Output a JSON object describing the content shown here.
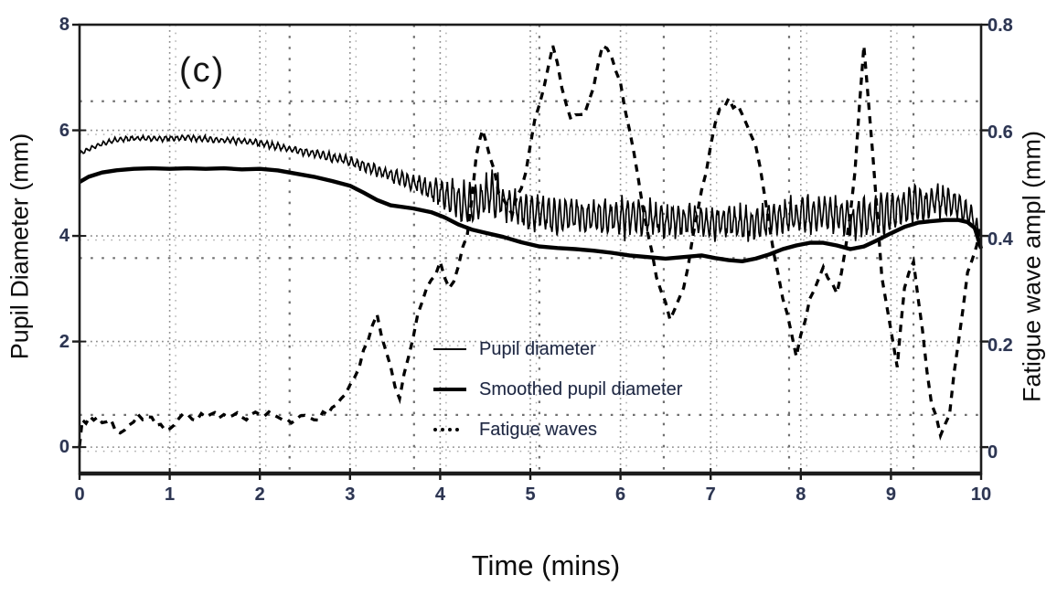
{
  "figure": {
    "panel_label": "(c)",
    "background": "#ffffff",
    "axes_color": "#1c1c1c",
    "grid_color": "#8c8c8c",
    "minor_grid_color": "#6f6f6f",
    "tick_text_color": "#2d3550",
    "series_color": "#000000"
  },
  "chart_data": {
    "type": "line",
    "panel_label": "(c)",
    "title": "",
    "xlabel": "Time (mins)",
    "xlim": [
      0,
      10
    ],
    "x_ticks": [
      "0",
      "1",
      "2",
      "3",
      "4",
      "5",
      "6",
      "7",
      "8",
      "9",
      "10"
    ],
    "x_tick_values": [
      0,
      1,
      2,
      3,
      4,
      5,
      6,
      7,
      8,
      9,
      10
    ],
    "y_left": {
      "label": "Pupil Diameter (mm)",
      "lim": [
        -0.5,
        8
      ],
      "ticks": [
        "0",
        "2",
        "4",
        "6",
        "8"
      ],
      "tick_values": [
        0,
        2,
        4,
        6,
        8
      ]
    },
    "y_right": {
      "label": "Fatigue wave ampl (mm)",
      "lim": [
        -0.052,
        0.8
      ],
      "ticks": [
        "0",
        "0.2",
        "0.4",
        "0.6",
        "0.8"
      ],
      "tick_values": [
        0,
        0.2,
        0.4,
        0.6,
        0.8
      ]
    },
    "grid": {
      "shown": true,
      "style": "dotted",
      "h_major_values_left_axis": [
        0,
        2,
        4,
        6
      ],
      "v_major_values": [
        1,
        2,
        3,
        4,
        5,
        6,
        7,
        8,
        9
      ],
      "h_minor_values_left_axis": [
        6.55,
        3.58,
        0.61
      ],
      "v_minor_values": [
        2.33,
        3.71,
        5.1,
        6.48,
        7.87,
        9.25
      ]
    },
    "legend": {
      "position": "inside-bottom-center",
      "entries": [
        {
          "label": "Pupil diameter",
          "style": "thin-line"
        },
        {
          "label": "Smoothed pupil diameter",
          "style": "thick-line"
        },
        {
          "label": "Fatigue waves",
          "style": "dotted-line"
        }
      ]
    },
    "series": [
      {
        "name": "Pupil diameter",
        "axis": "left",
        "style": "thin-noisy",
        "oscillation_freq_per_min": 16,
        "center": [
          [
            0,
            5.55
          ],
          [
            0.2,
            5.72
          ],
          [
            0.4,
            5.82
          ],
          [
            0.6,
            5.85
          ],
          [
            0.9,
            5.84
          ],
          [
            1.2,
            5.86
          ],
          [
            1.5,
            5.82
          ],
          [
            1.8,
            5.8
          ],
          [
            2.0,
            5.76
          ],
          [
            2.3,
            5.66
          ],
          [
            2.6,
            5.56
          ],
          [
            2.9,
            5.45
          ],
          [
            3.2,
            5.3
          ],
          [
            3.5,
            5.12
          ],
          [
            3.8,
            4.95
          ],
          [
            4.1,
            4.72
          ],
          [
            4.35,
            4.58
          ],
          [
            4.55,
            4.78
          ],
          [
            4.75,
            4.6
          ],
          [
            5.0,
            4.45
          ],
          [
            5.3,
            4.38
          ],
          [
            5.6,
            4.36
          ],
          [
            5.9,
            4.38
          ],
          [
            6.2,
            4.33
          ],
          [
            6.5,
            4.3
          ],
          [
            6.8,
            4.28
          ],
          [
            7.1,
            4.25
          ],
          [
            7.4,
            4.22
          ],
          [
            7.7,
            4.3
          ],
          [
            8.0,
            4.4
          ],
          [
            8.3,
            4.42
          ],
          [
            8.6,
            4.3
          ],
          [
            8.9,
            4.4
          ],
          [
            9.2,
            4.55
          ],
          [
            9.5,
            4.68
          ],
          [
            9.75,
            4.6
          ],
          [
            9.9,
            4.35
          ],
          [
            10,
            3.95
          ]
        ],
        "noise_amplitude": [
          [
            0,
            0.05
          ],
          [
            1.0,
            0.055
          ],
          [
            2.0,
            0.07
          ],
          [
            2.8,
            0.09
          ],
          [
            3.3,
            0.12
          ],
          [
            3.7,
            0.18
          ],
          [
            4.0,
            0.28
          ],
          [
            4.2,
            0.4
          ],
          [
            4.5,
            0.45
          ],
          [
            4.8,
            0.42
          ],
          [
            5.1,
            0.4
          ],
          [
            5.5,
            0.38
          ],
          [
            6.0,
            0.4
          ],
          [
            6.5,
            0.38
          ],
          [
            7.0,
            0.36
          ],
          [
            7.5,
            0.4
          ],
          [
            8.0,
            0.35
          ],
          [
            8.5,
            0.42
          ],
          [
            8.8,
            0.5
          ],
          [
            9.1,
            0.42
          ],
          [
            9.4,
            0.38
          ],
          [
            9.7,
            0.32
          ],
          [
            9.9,
            0.25
          ],
          [
            10,
            0.15
          ]
        ]
      },
      {
        "name": "Smoothed pupil diameter",
        "axis": "left",
        "style": "thick-solid",
        "points": [
          [
            0,
            5.02
          ],
          [
            0.1,
            5.12
          ],
          [
            0.25,
            5.2
          ],
          [
            0.4,
            5.24
          ],
          [
            0.6,
            5.27
          ],
          [
            0.8,
            5.28
          ],
          [
            1.0,
            5.27
          ],
          [
            1.2,
            5.28
          ],
          [
            1.4,
            5.27
          ],
          [
            1.6,
            5.28
          ],
          [
            1.8,
            5.26
          ],
          [
            2.0,
            5.27
          ],
          [
            2.2,
            5.24
          ],
          [
            2.4,
            5.18
          ],
          [
            2.6,
            5.12
          ],
          [
            2.8,
            5.04
          ],
          [
            3.0,
            4.95
          ],
          [
            3.15,
            4.82
          ],
          [
            3.3,
            4.68
          ],
          [
            3.45,
            4.58
          ],
          [
            3.7,
            4.52
          ],
          [
            3.9,
            4.45
          ],
          [
            4.05,
            4.35
          ],
          [
            4.2,
            4.22
          ],
          [
            4.35,
            4.12
          ],
          [
            4.5,
            4.06
          ],
          [
            4.7,
            3.98
          ],
          [
            4.9,
            3.88
          ],
          [
            5.1,
            3.8
          ],
          [
            5.3,
            3.77
          ],
          [
            5.5,
            3.75
          ],
          [
            5.7,
            3.72
          ],
          [
            5.9,
            3.68
          ],
          [
            6.1,
            3.63
          ],
          [
            6.3,
            3.6
          ],
          [
            6.5,
            3.57
          ],
          [
            6.7,
            3.6
          ],
          [
            6.9,
            3.63
          ],
          [
            7.05,
            3.58
          ],
          [
            7.2,
            3.54
          ],
          [
            7.35,
            3.52
          ],
          [
            7.5,
            3.57
          ],
          [
            7.65,
            3.65
          ],
          [
            7.8,
            3.75
          ],
          [
            7.95,
            3.82
          ],
          [
            8.1,
            3.87
          ],
          [
            8.25,
            3.87
          ],
          [
            8.4,
            3.82
          ],
          [
            8.55,
            3.75
          ],
          [
            8.7,
            3.8
          ],
          [
            8.85,
            3.92
          ],
          [
            9.0,
            4.05
          ],
          [
            9.15,
            4.17
          ],
          [
            9.3,
            4.25
          ],
          [
            9.45,
            4.28
          ],
          [
            9.6,
            4.3
          ],
          [
            9.75,
            4.3
          ],
          [
            9.85,
            4.26
          ],
          [
            9.93,
            4.15
          ],
          [
            10,
            3.76
          ]
        ]
      },
      {
        "name": "Fatigue waves",
        "axis": "right",
        "style": "dashed",
        "points": [
          [
            0,
            0
          ],
          [
            0.03,
            0.05
          ],
          [
            0.2,
            0.055
          ],
          [
            0.35,
            0.05
          ],
          [
            0.45,
            0.025
          ],
          [
            0.55,
            0.04
          ],
          [
            0.65,
            0.06
          ],
          [
            0.8,
            0.055
          ],
          [
            0.95,
            0.03
          ],
          [
            1.05,
            0.04
          ],
          [
            1.2,
            0.06
          ],
          [
            1.4,
            0.055
          ],
          [
            1.6,
            0.06
          ],
          [
            1.8,
            0.055
          ],
          [
            2.0,
            0.06
          ],
          [
            2.2,
            0.055
          ],
          [
            2.4,
            0.05
          ],
          [
            2.6,
            0.05
          ],
          [
            2.75,
            0.06
          ],
          [
            2.9,
            0.09
          ],
          [
            3.05,
            0.13
          ],
          [
            3.2,
            0.2
          ],
          [
            3.3,
            0.25
          ],
          [
            3.4,
            0.18
          ],
          [
            3.55,
            0.09
          ],
          [
            3.65,
            0.17
          ],
          [
            3.75,
            0.25
          ],
          [
            3.85,
            0.3
          ],
          [
            4.0,
            0.35
          ],
          [
            4.1,
            0.3
          ],
          [
            4.2,
            0.34
          ],
          [
            4.3,
            0.4
          ],
          [
            4.4,
            0.55
          ],
          [
            4.47,
            0.6
          ],
          [
            4.55,
            0.55
          ],
          [
            4.65,
            0.48
          ],
          [
            4.8,
            0.44
          ],
          [
            4.95,
            0.52
          ],
          [
            5.05,
            0.62
          ],
          [
            5.15,
            0.68
          ],
          [
            5.25,
            0.76
          ],
          [
            5.35,
            0.68
          ],
          [
            5.45,
            0.62
          ],
          [
            5.6,
            0.63
          ],
          [
            5.7,
            0.68
          ],
          [
            5.8,
            0.76
          ],
          [
            5.9,
            0.74
          ],
          [
            6.0,
            0.69
          ],
          [
            6.1,
            0.6
          ],
          [
            6.25,
            0.45
          ],
          [
            6.4,
            0.32
          ],
          [
            6.55,
            0.24
          ],
          [
            6.7,
            0.3
          ],
          [
            6.85,
            0.44
          ],
          [
            7.0,
            0.57
          ],
          [
            7.1,
            0.64
          ],
          [
            7.2,
            0.66
          ],
          [
            7.35,
            0.63
          ],
          [
            7.5,
            0.57
          ],
          [
            7.65,
            0.42
          ],
          [
            7.8,
            0.28
          ],
          [
            7.95,
            0.17
          ],
          [
            8.1,
            0.28
          ],
          [
            8.25,
            0.34
          ],
          [
            8.4,
            0.29
          ],
          [
            8.5,
            0.38
          ],
          [
            8.6,
            0.52
          ],
          [
            8.7,
            0.76
          ],
          [
            8.8,
            0.55
          ],
          [
            8.9,
            0.32
          ],
          [
            9.0,
            0.22
          ],
          [
            9.07,
            0.15
          ],
          [
            9.15,
            0.3
          ],
          [
            9.25,
            0.35
          ],
          [
            9.35,
            0.22
          ],
          [
            9.45,
            0.08
          ],
          [
            9.55,
            0.02
          ],
          [
            9.65,
            0.06
          ],
          [
            9.75,
            0.2
          ],
          [
            9.85,
            0.33
          ],
          [
            9.95,
            0.38
          ],
          [
            10,
            0.42
          ]
        ]
      }
    ]
  }
}
